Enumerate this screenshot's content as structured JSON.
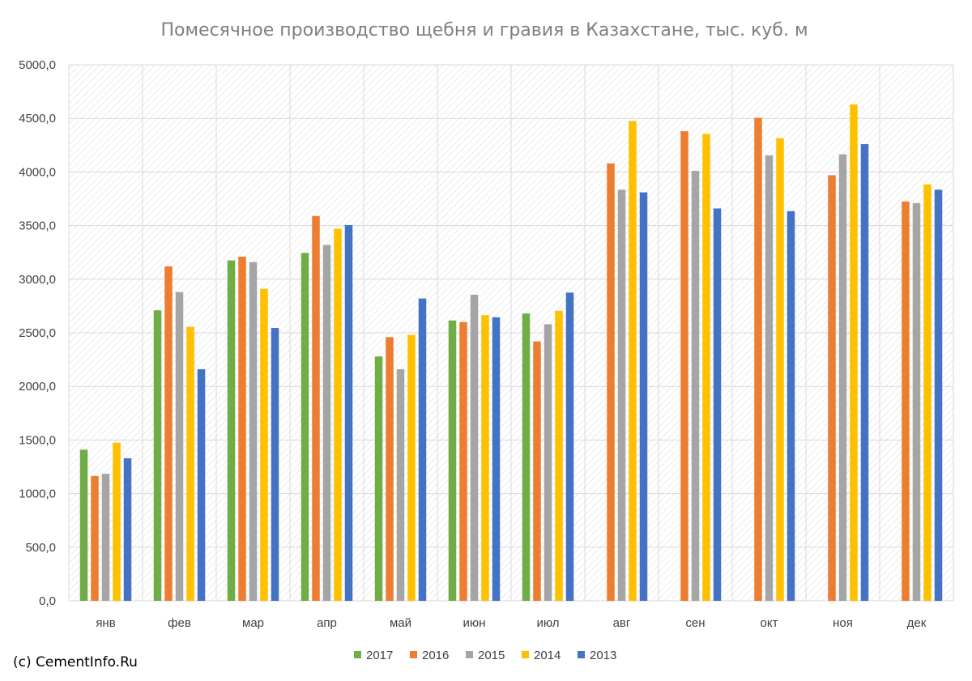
{
  "chart_data": {
    "type": "bar",
    "title": "Помесячное производство щебня и гравия в Казахстане, тыс. куб. м",
    "xlabel": "",
    "ylabel": "",
    "ylim": [
      0,
      5000
    ],
    "y_ticks": [
      "0,0",
      "500,0",
      "1000,0",
      "1500,0",
      "2000,0",
      "2500,0",
      "3000,0",
      "3500,0",
      "4000,0",
      "4500,0",
      "5000,0"
    ],
    "grid": true,
    "legend_position": "bottom",
    "categories": [
      "янв",
      "фев",
      "мар",
      "апр",
      "май",
      "июн",
      "июл",
      "авг",
      "сен",
      "окт",
      "ноя",
      "дек"
    ],
    "series": [
      {
        "name": "2017",
        "color": "#70ad47",
        "values": [
          1410,
          2710,
          3175,
          3245,
          2280,
          2615,
          2680,
          null,
          null,
          null,
          null,
          null
        ]
      },
      {
        "name": "2016",
        "color": "#ed7d31",
        "values": [
          1165,
          3120,
          3210,
          3590,
          2460,
          2600,
          2420,
          4080,
          4380,
          4505,
          3970,
          3725
        ]
      },
      {
        "name": "2015",
        "color": "#a5a5a5",
        "values": [
          1185,
          2880,
          3160,
          3320,
          2160,
          2855,
          2580,
          3835,
          4010,
          4155,
          4165,
          3710
        ]
      },
      {
        "name": "2014",
        "color": "#ffc000",
        "values": [
          1475,
          2555,
          2910,
          3470,
          2480,
          2665,
          2705,
          4475,
          4355,
          4315,
          4630,
          3885
        ]
      },
      {
        "name": "2013",
        "color": "#4472c4",
        "values": [
          1330,
          2160,
          2545,
          3505,
          2820,
          2645,
          2875,
          3810,
          3660,
          3635,
          4260,
          3835
        ]
      }
    ]
  },
  "credit": "(c) CementInfo.Ru"
}
